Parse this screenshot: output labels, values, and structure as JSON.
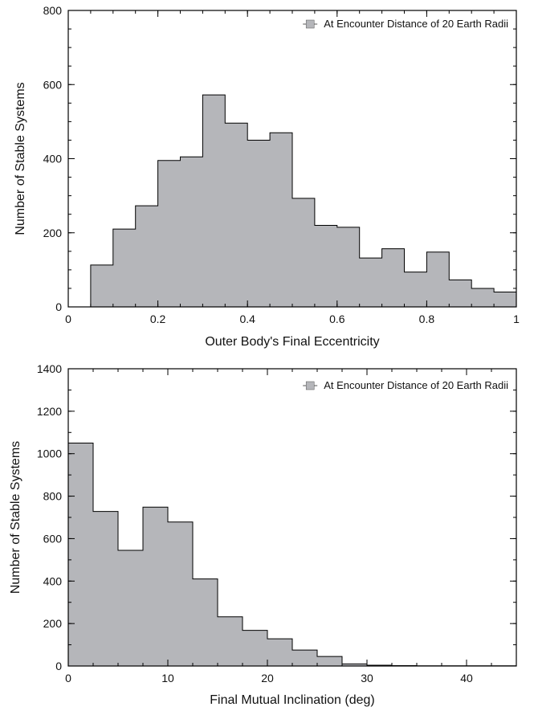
{
  "chart_data": [
    {
      "type": "histogram",
      "title": "",
      "xlabel": "Outer Body's Final Eccentricity",
      "ylabel": "Number of Stable Systems",
      "xlim": [
        0,
        1
      ],
      "ylim": [
        0,
        800
      ],
      "xticks": [
        0,
        0.2,
        0.4,
        0.6,
        0.8,
        1
      ],
      "xtick_labels": [
        "0",
        "0.2",
        "0.4",
        "0.6",
        "0.8",
        "1"
      ],
      "yticks": [
        0,
        200,
        400,
        600,
        800
      ],
      "ytick_labels": [
        "0",
        "200",
        "400",
        "600",
        "800"
      ],
      "x_minor_step": 0.05,
      "y_minor_step": 50,
      "bin_edges": [
        0.05,
        0.1,
        0.15,
        0.2,
        0.25,
        0.3,
        0.35,
        0.4,
        0.45,
        0.5,
        0.55,
        0.6,
        0.65,
        0.7,
        0.75,
        0.8,
        0.85,
        0.9,
        0.95,
        1.0
      ],
      "values": [
        113,
        210,
        273,
        395,
        405,
        572,
        496,
        450,
        470,
        293,
        220,
        215,
        132,
        157,
        94,
        148,
        73,
        50,
        40
      ],
      "fill_color": "#b5b6ba",
      "edge_color": "#000000",
      "legend": {
        "label": "At Encounter Distance of 20 Earth Radii",
        "position": "top-right"
      },
      "grid": false
    },
    {
      "type": "histogram",
      "title": "",
      "xlabel": "Final Mutual Inclination (deg)",
      "ylabel": "Number of Stable Systems",
      "xlim": [
        0,
        45
      ],
      "ylim": [
        0,
        1400
      ],
      "xticks": [
        0,
        10,
        20,
        30,
        40
      ],
      "xtick_labels": [
        "0",
        "10",
        "20",
        "30",
        "40"
      ],
      "yticks": [
        0,
        200,
        400,
        600,
        800,
        1000,
        1200,
        1400
      ],
      "ytick_labels": [
        "0",
        "200",
        "400",
        "600",
        "800",
        "1000",
        "1200",
        "1400"
      ],
      "x_minor_step": 2.5,
      "y_minor_step": 100,
      "bin_edges": [
        0,
        2.5,
        5,
        7.5,
        10,
        12.5,
        15,
        17.5,
        20,
        22.5,
        25,
        27.5,
        30,
        32.5,
        35,
        37.5,
        40,
        42.5,
        45
      ],
      "values": [
        1050,
        728,
        545,
        748,
        678,
        410,
        232,
        168,
        128,
        75,
        45,
        10,
        4,
        2,
        1,
        1,
        1,
        1
      ],
      "fill_color": "#b5b6ba",
      "edge_color": "#000000",
      "legend": {
        "label": "At Encounter Distance of 20 Earth Radii",
        "position": "top-right"
      },
      "grid": false
    }
  ]
}
